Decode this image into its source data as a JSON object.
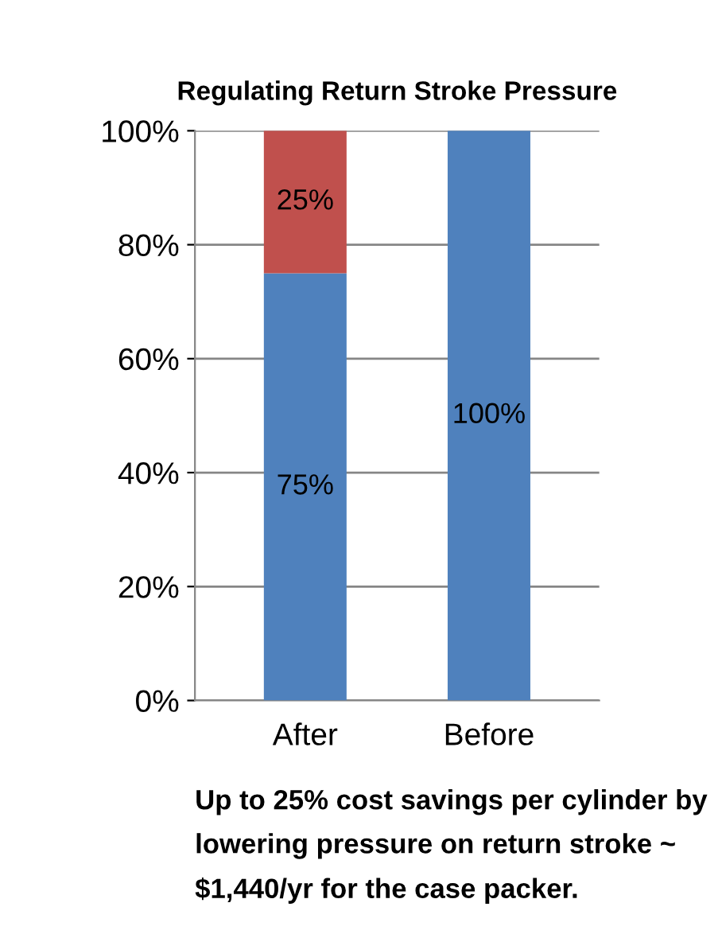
{
  "chart_data": {
    "type": "bar",
    "title": "Regulating Return Stroke Pressure",
    "categories": [
      "After",
      "Before"
    ],
    "stacked": true,
    "series": [
      {
        "color": "#4f81bd",
        "values": [
          75,
          100
        ],
        "value_labels": [
          "75%",
          "100%"
        ]
      },
      {
        "color": "#c0504d",
        "values": [
          25,
          null
        ],
        "value_labels": [
          "25%",
          null
        ]
      }
    ],
    "ylim": [
      0,
      100
    ],
    "yticks": [
      {
        "value": 0,
        "label": "0%"
      },
      {
        "value": 20,
        "label": "20%"
      },
      {
        "value": 40,
        "label": "40%"
      },
      {
        "value": 60,
        "label": "60%"
      },
      {
        "value": 80,
        "label": "80%"
      },
      {
        "value": 100,
        "label": "100%"
      }
    ],
    "grid": "y",
    "annotations": [
      "Up to 25% cost savings per cylinder by lowering pressure on return stroke ~ $1,440/yr for the case packer."
    ]
  }
}
